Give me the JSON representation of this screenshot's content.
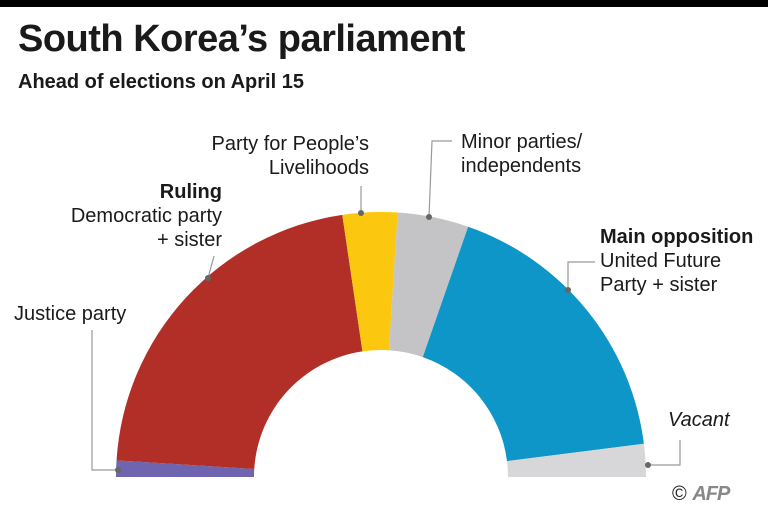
{
  "title": "South Korea’s parliament",
  "subtitle": "Ahead of elections on April 15",
  "credit": {
    "copyright": "©",
    "logo": "AFP"
  },
  "chart_data": {
    "type": "pie",
    "variant": "half-donut (parliament seats)",
    "total_seats": 300,
    "segments": [
      {
        "key": "justice",
        "label_lines": [
          "Justice party"
        ],
        "value": 6,
        "color": "#6e64b0"
      },
      {
        "key": "ruling",
        "header": "Ruling",
        "label_lines": [
          "Democratic party",
          "+ sister"
        ],
        "value": 130,
        "color": "#b12f27"
      },
      {
        "key": "ppl",
        "label_lines": [
          "Party for People’s",
          "Livelihoods"
        ],
        "value": 20,
        "color": "#fcc80f"
      },
      {
        "key": "minor",
        "label_lines": [
          "Minor parties/",
          "independents"
        ],
        "value": 26,
        "color": "#c4c4c6"
      },
      {
        "key": "opposition",
        "header": "Main opposition",
        "label_lines": [
          "United Future",
          "Party + sister"
        ],
        "value": 106,
        "color": "#0e96c8"
      },
      {
        "key": "vacant",
        "label_lines": [
          "Vacant"
        ],
        "value": 12,
        "color": "#d7d7d9",
        "italic": true
      }
    ]
  }
}
